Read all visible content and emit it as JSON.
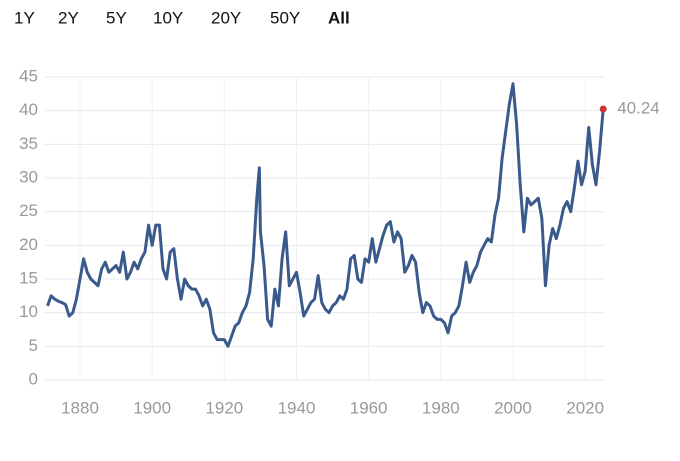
{
  "range_buttons": [
    "1Y",
    "2Y",
    "5Y",
    "10Y",
    "20Y",
    "50Y",
    "All"
  ],
  "chart_data": {
    "type": "line",
    "x": [
      1871,
      1872,
      1873,
      1874,
      1875,
      1876,
      1877,
      1878,
      1879,
      1880,
      1881,
      1882,
      1883,
      1884,
      1885,
      1886,
      1887,
      1888,
      1889,
      1890,
      1891,
      1892,
      1893,
      1894,
      1895,
      1896,
      1897,
      1898,
      1899,
      1900,
      1901,
      1902,
      1903,
      1904,
      1905,
      1906,
      1907,
      1908,
      1909,
      1910,
      1911,
      1912,
      1913,
      1914,
      1915,
      1916,
      1917,
      1918,
      1919,
      1920,
      1921,
      1922,
      1923,
      1924,
      1925,
      1926,
      1927,
      1928,
      1929,
      1929.7,
      1930,
      1931,
      1932,
      1933,
      1934,
      1935,
      1936,
      1937,
      1938,
      1939,
      1940,
      1941,
      1942,
      1943,
      1944,
      1945,
      1946,
      1947,
      1948,
      1949,
      1950,
      1951,
      1952,
      1953,
      1954,
      1955,
      1956,
      1957,
      1958,
      1959,
      1960,
      1961,
      1962,
      1963,
      1964,
      1965,
      1966,
      1967,
      1968,
      1969,
      1970,
      1971,
      1972,
      1973,
      1974,
      1975,
      1976,
      1977,
      1978,
      1979,
      1980,
      1981,
      1982,
      1983,
      1984,
      1985,
      1986,
      1987,
      1988,
      1989,
      1990,
      1991,
      1992,
      1993,
      1994,
      1995,
      1996,
      1997,
      1998,
      1999,
      2000,
      2001,
      2002,
      2003,
      2004,
      2005,
      2006,
      2007,
      2008,
      2009,
      2010,
      2011,
      2012,
      2013,
      2014,
      2015,
      2016,
      2017,
      2018,
      2019,
      2020,
      2021,
      2022,
      2023,
      2024,
      2025
    ],
    "series": [
      {
        "color": "#3a5a8c",
        "values": [
          11,
          12.5,
          12,
          11.7,
          11.5,
          11.2,
          9.5,
          10,
          12,
          15,
          18,
          16,
          15,
          14.5,
          14,
          16.5,
          17.5,
          16,
          16.5,
          17,
          16,
          19,
          15,
          16,
          17.5,
          16.5,
          18,
          19,
          23,
          20,
          23,
          23,
          16.5,
          15,
          19,
          19.5,
          15,
          12,
          15,
          14,
          13.5,
          13.5,
          12.5,
          11,
          12,
          10.5,
          7,
          6,
          6,
          6,
          5,
          6.5,
          8,
          8.5,
          10,
          11,
          13,
          18,
          27,
          31.5,
          22,
          17,
          9,
          8,
          13.5,
          11,
          18,
          22,
          14,
          15,
          16,
          13,
          9.5,
          10.5,
          11.5,
          12,
          15.5,
          11.5,
          10.5,
          10,
          11,
          11.5,
          12.5,
          12,
          13.5,
          18,
          18.5,
          15,
          14.5,
          18,
          17.5,
          21,
          17.5,
          19.5,
          21.5,
          23,
          23.5,
          20.5,
          22,
          21,
          16,
          17,
          18.5,
          17.5,
          13,
          10,
          11.5,
          11,
          9.5,
          9,
          9,
          8.5,
          7,
          9.5,
          10,
          11,
          14,
          17.5,
          14.5,
          16,
          17,
          19,
          20,
          21,
          20.5,
          24.5,
          27,
          33,
          37,
          41,
          44,
          38,
          29,
          22,
          27,
          26,
          26.5,
          27,
          24,
          14,
          20,
          22.5,
          21,
          23,
          25.5,
          26.5,
          25,
          28.5,
          32.5,
          29,
          31,
          37.5,
          32,
          29,
          34,
          40.24
        ]
      }
    ],
    "xlim": [
      1870.3,
      2025.5
    ],
    "ylim": [
      0,
      45
    ],
    "xticks": [
      1880,
      1900,
      1920,
      1940,
      1960,
      1980,
      2000,
      2020
    ],
    "yticks": [
      0,
      5,
      10,
      15,
      20,
      25,
      30,
      35,
      40,
      45
    ],
    "grid": true,
    "end_marker_color": "#d0343a"
  }
}
